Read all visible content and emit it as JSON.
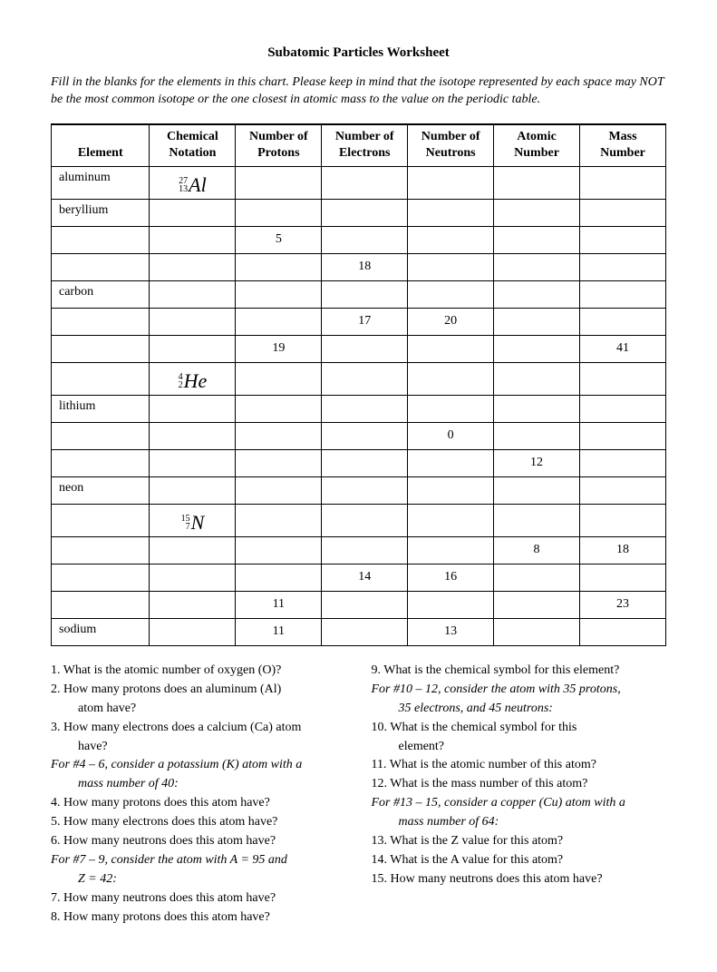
{
  "title": "Subatomic Particles Worksheet",
  "instructions": "Fill in the blanks for the elements in this chart. Please keep in mind that the isotope represented by each space may NOT be the most common isotope or the one closest in atomic mass to the value on the periodic table.",
  "table": {
    "headers": {
      "element": "Element",
      "notation_l1": "Chemical",
      "notation_l2": "Notation",
      "protons_l1": "Number of",
      "protons_l2": "Protons",
      "electrons_l1": "Number of",
      "electrons_l2": "Electrons",
      "neutrons_l1": "Number of",
      "neutrons_l2": "Neutrons",
      "atomic_l1": "Atomic",
      "atomic_l2": "Number",
      "mass_l1": "Mass",
      "mass_l2": "Number"
    },
    "col_widths_pct": [
      16,
      14,
      14,
      14,
      14,
      14,
      14
    ],
    "rows": [
      {
        "element": "aluminum",
        "notation": {
          "top": "27",
          "bot": "13",
          "sym": "Al"
        },
        "protons": "",
        "electrons": "",
        "neutrons": "",
        "atomic": "",
        "mass": ""
      },
      {
        "element": "beryllium",
        "notation": null,
        "protons": "",
        "electrons": "",
        "neutrons": "",
        "atomic": "",
        "mass": ""
      },
      {
        "element": "",
        "notation": null,
        "protons": "5",
        "electrons": "",
        "neutrons": "",
        "atomic": "",
        "mass": ""
      },
      {
        "element": "",
        "notation": null,
        "protons": "",
        "electrons": "18",
        "neutrons": "",
        "atomic": "",
        "mass": ""
      },
      {
        "element": "carbon",
        "notation": null,
        "protons": "",
        "electrons": "",
        "neutrons": "",
        "atomic": "",
        "mass": ""
      },
      {
        "element": "",
        "notation": null,
        "protons": "",
        "electrons": "17",
        "neutrons": "20",
        "atomic": "",
        "mass": ""
      },
      {
        "element": "",
        "notation": null,
        "protons": "19",
        "electrons": "",
        "neutrons": "",
        "atomic": "",
        "mass": "41"
      },
      {
        "element": "",
        "notation": {
          "top": "4",
          "bot": "2",
          "sym": "He"
        },
        "protons": "",
        "electrons": "",
        "neutrons": "",
        "atomic": "",
        "mass": ""
      },
      {
        "element": "lithium",
        "notation": null,
        "protons": "",
        "electrons": "",
        "neutrons": "",
        "atomic": "",
        "mass": ""
      },
      {
        "element": "",
        "notation": null,
        "protons": "",
        "electrons": "",
        "neutrons": "0",
        "atomic": "",
        "mass": ""
      },
      {
        "element": "",
        "notation": null,
        "protons": "",
        "electrons": "",
        "neutrons": "",
        "atomic": "12",
        "mass": ""
      },
      {
        "element": "neon",
        "notation": null,
        "protons": "",
        "electrons": "",
        "neutrons": "",
        "atomic": "",
        "mass": ""
      },
      {
        "element": "",
        "notation": {
          "top": "15",
          "bot": "7",
          "sym": "N"
        },
        "protons": "",
        "electrons": "",
        "neutrons": "",
        "atomic": "",
        "mass": ""
      },
      {
        "element": "",
        "notation": null,
        "protons": "",
        "electrons": "",
        "neutrons": "",
        "atomic": "8",
        "mass": "18"
      },
      {
        "element": "",
        "notation": null,
        "protons": "",
        "electrons": "14",
        "neutrons": "16",
        "atomic": "",
        "mass": ""
      },
      {
        "element": "",
        "notation": null,
        "protons": "11",
        "electrons": "",
        "neutrons": "",
        "atomic": "",
        "mass": "23"
      },
      {
        "element": "sodium",
        "notation": null,
        "protons": "11",
        "electrons": "",
        "neutrons": "13",
        "atomic": "",
        "mass": ""
      }
    ]
  },
  "questions": {
    "left": [
      {
        "t": "1. What is the atomic number of oxygen (O)?",
        "ital": false,
        "sub": false
      },
      {
        "t": "2.  How many protons does an aluminum (Al)",
        "ital": false,
        "sub": false
      },
      {
        "t": "atom have?",
        "ital": false,
        "sub": true
      },
      {
        "t": "3.  How many electrons does a calcium (Ca) atom",
        "ital": false,
        "sub": false
      },
      {
        "t": "have?",
        "ital": false,
        "sub": true
      },
      {
        "t": "For #4 – 6, consider a potassium (K) atom with a",
        "ital": true,
        "sub": false
      },
      {
        "t": "mass number of 40:",
        "ital": true,
        "sub": true
      },
      {
        "t": "4.  How many protons does this atom have?",
        "ital": false,
        "sub": false
      },
      {
        "t": "5.  How many electrons does this atom have?",
        "ital": false,
        "sub": false
      },
      {
        "t": "6.  How many neutrons does this atom have?",
        "ital": false,
        "sub": false
      },
      {
        "t": "For #7 – 9, consider the atom with A = 95 and",
        "ital": true,
        "sub": false
      },
      {
        "t": "Z = 42:",
        "ital": true,
        "sub": true
      },
      {
        "t": "7.  How many neutrons does this atom have?",
        "ital": false,
        "sub": false
      },
      {
        "t": "8.  How many protons does this atom have?",
        "ital": false,
        "sub": false
      }
    ],
    "right": [
      {
        "t": "9.  What is the chemical symbol for this element?",
        "ital": false,
        "sub": false
      },
      {
        "t": "For #10 – 12, consider the atom with 35 protons,",
        "ital": true,
        "sub": false
      },
      {
        "t": "35 electrons, and 45 neutrons:",
        "ital": true,
        "sub": true
      },
      {
        "t": "10.  What is the chemical symbol for this",
        "ital": false,
        "sub": false
      },
      {
        "t": "element?",
        "ital": false,
        "sub": true
      },
      {
        "t": "11.  What is the atomic number of this atom?",
        "ital": false,
        "sub": false
      },
      {
        "t": "12.  What is the mass number of this atom?",
        "ital": false,
        "sub": false
      },
      {
        "t": "For #13 – 15, consider a copper (Cu) atom with a",
        "ital": true,
        "sub": false
      },
      {
        "t": "mass number of 64:",
        "ital": true,
        "sub": true
      },
      {
        "t": "13.  What is the Z value for this atom?",
        "ital": false,
        "sub": false
      },
      {
        "t": "14.  What is the A value for this atom?",
        "ital": false,
        "sub": false
      },
      {
        "t": "15.  How many neutrons does this atom have?",
        "ital": false,
        "sub": false
      }
    ]
  }
}
